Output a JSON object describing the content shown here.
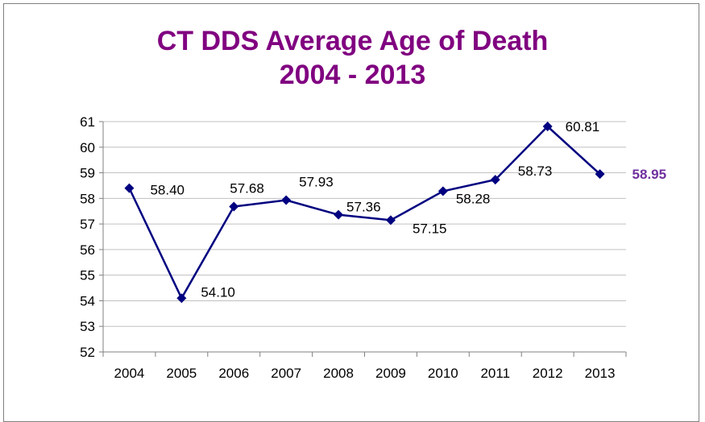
{
  "chart_data": {
    "type": "line",
    "title_lines": [
      "CT DDS Average Age of Death",
      "2004 - 2013"
    ],
    "xlabel": "",
    "ylabel": "",
    "categories": [
      "2004",
      "2005",
      "2006",
      "2007",
      "2008",
      "2009",
      "2010",
      "2011",
      "2012",
      "2013"
    ],
    "series": [
      {
        "values": [
          58.4,
          54.1,
          57.68,
          57.93,
          57.36,
          57.15,
          58.28,
          58.73,
          60.81,
          58.95
        ],
        "labels": [
          "58.40",
          "54.10",
          "57.68",
          "57.93",
          "57.36",
          "57.15",
          "58.28",
          "58.73",
          "60.81",
          "58.95"
        ],
        "color": "#000080",
        "marker": "diamond"
      }
    ],
    "ylim": [
      52,
      61
    ],
    "yticks": [
      "52",
      "53",
      "54",
      "55",
      "56",
      "57",
      "58",
      "59",
      "60",
      "61"
    ],
    "grid": true,
    "legend": "none",
    "label_color": "#000000",
    "highlight_label_color": "#7030A0",
    "title_color": "#800080"
  }
}
